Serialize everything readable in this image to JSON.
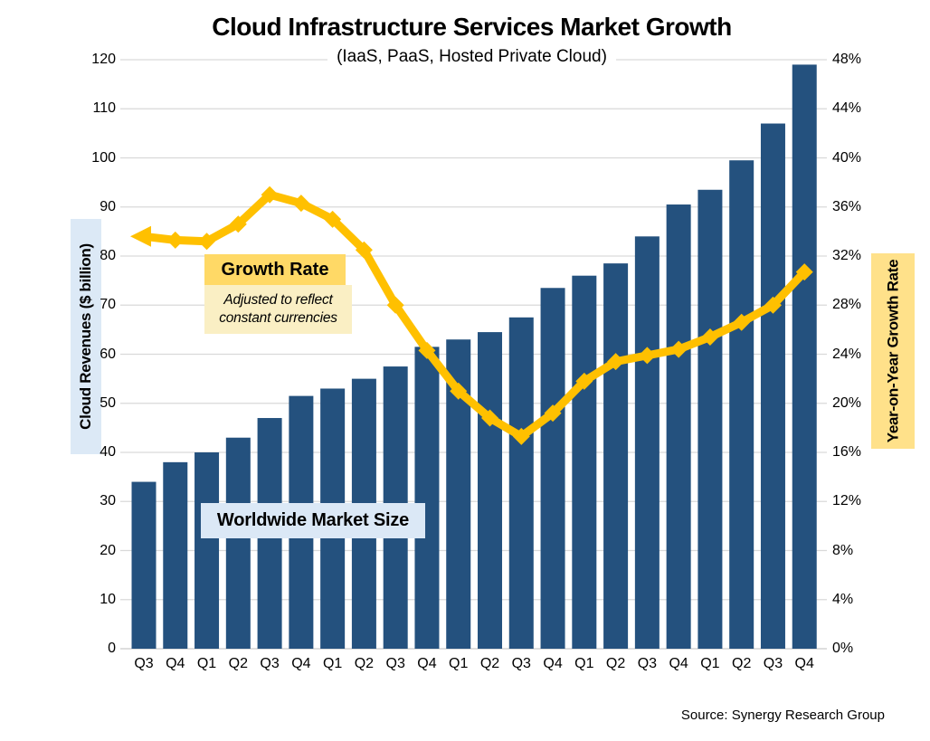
{
  "title": "Cloud Infrastructure Services Market Growth",
  "subtitle": "(IaaS, PaaS, Hosted Private Cloud)",
  "source": "Source: Synergy Research Group",
  "left_axis": {
    "label": "Cloud Revenues ($ billion)",
    "ticks": [
      "120",
      "110",
      "100",
      "90",
      "80",
      "70",
      "60",
      "50",
      "40",
      "30",
      "20",
      "10",
      "0"
    ]
  },
  "right_axis": {
    "label": "Year-on-Year Growth Rate",
    "ticks": [
      "48%",
      "44%",
      "40%",
      "36%",
      "32%",
      "28%",
      "24%",
      "20%",
      "16%",
      "12%",
      "8%",
      "4%",
      "0%"
    ]
  },
  "annotations": {
    "growth_rate_title": "Growth Rate",
    "growth_rate_note_line1": "Adjusted to reflect",
    "growth_rate_note_line2": "constant currencies",
    "market_size_label": "Worldwide Market Size"
  },
  "colors": {
    "bar": "#24517E",
    "line": "#FFC000",
    "gridline": "#D9D9D9",
    "axis_line": "#C9C9C9",
    "left_label_bg": "#DCE9F6",
    "right_label_bg": "#FFE18A",
    "growth_title_bg": "#FFD966",
    "growth_note_bg": "#FAEFC4",
    "market_label_bg": "#DBE8F6"
  },
  "chart_data": {
    "type": "combo",
    "grid": true,
    "legend_position": "inline-labels",
    "categories": [
      "Q3 20",
      "Q4 20",
      "Q1 21",
      "Q2 21",
      "Q3 21",
      "Q4 21",
      "Q1 22",
      "Q2 22",
      "Q3 22",
      "Q4 22",
      "Q1 23",
      "Q2 23",
      "Q3 23",
      "Q4 23",
      "Q1 24",
      "Q2 24",
      "Q3 24",
      "Q4 24",
      "Q1 25",
      "Q2 25",
      "Q3 25",
      "Q4 25"
    ],
    "left_ylabel": "Cloud Revenues ($ billion)",
    "right_ylabel": "Year-on-Year Growth Rate",
    "left_ylim": [
      0,
      120
    ],
    "right_ylim": [
      0,
      48
    ],
    "series": [
      {
        "name": "Worldwide Market Size",
        "type": "bar",
        "axis": "left",
        "values": [
          34,
          38,
          40,
          43,
          47,
          51.5,
          53,
          55,
          57.5,
          61.5,
          63,
          64.5,
          67.5,
          73.5,
          76,
          78.5,
          84,
          90.5,
          93.5,
          99.5,
          107,
          119
        ]
      },
      {
        "name": "Growth Rate (YoY %, constant currencies)",
        "type": "line",
        "axis": "right",
        "values": [
          33.6,
          33.3,
          33.2,
          34.6,
          37,
          36.3,
          35,
          32.5,
          28,
          24.3,
          21,
          18.8,
          17.3,
          19.2,
          21.8,
          23.4,
          23.9,
          24.4,
          25.4,
          26.6,
          28,
          30.7
        ]
      }
    ]
  }
}
